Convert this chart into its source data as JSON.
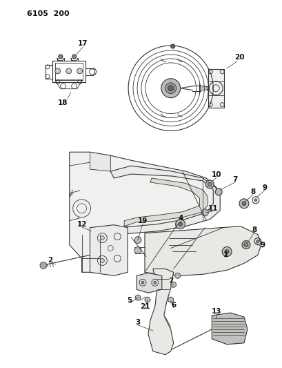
{
  "title": "6105  200",
  "bg_color": "#ffffff",
  "line_color": "#333333",
  "label_color": "#111111",
  "figsize": [
    4.1,
    5.33
  ],
  "dpi": 100,
  "lw": 0.8
}
